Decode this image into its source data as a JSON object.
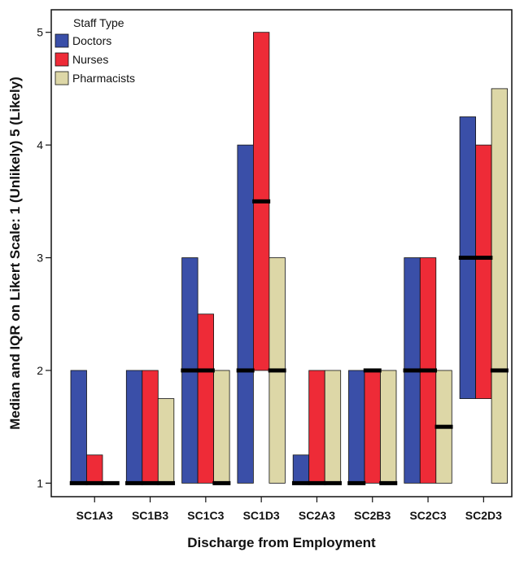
{
  "chart_data": {
    "type": "bar",
    "subtype": "floating-range-with-median",
    "xlabel": "Discharge from Employment",
    "ylabel": "Median and IQR on Likert Scale: 1 (Unlikely) 5 (Likely)",
    "ylim": [
      0.88,
      5.2
    ],
    "yticks": [
      1,
      2,
      3,
      4,
      5
    ],
    "grid": false,
    "legend": {
      "title": "Staff Type",
      "placement": "top-left",
      "entries": [
        "Doctors",
        "Nurses",
        "Pharmacists"
      ]
    },
    "categories": [
      "SC1A3",
      "SC1B3",
      "SC1C3",
      "SC1D3",
      "SC2A3",
      "SC2B3",
      "SC2C3",
      "SC2D3"
    ],
    "series": [
      {
        "name": "Doctors",
        "color": "#3a4fa8",
        "lower": [
          1,
          1,
          1,
          1,
          1,
          1,
          1,
          1.75
        ],
        "upper": [
          2,
          2,
          3,
          4,
          1.25,
          2,
          3,
          4.25
        ],
        "median": [
          1,
          1,
          2,
          2,
          1,
          1,
          2,
          3
        ]
      },
      {
        "name": "Nurses",
        "color": "#ee2b37",
        "lower": [
          1,
          1,
          1,
          2,
          1,
          1,
          1,
          1.75
        ],
        "upper": [
          1.25,
          2,
          2.5,
          5,
          2,
          2,
          3,
          4
        ],
        "median": [
          1,
          1,
          2,
          3.5,
          1,
          2,
          2,
          3
        ]
      },
      {
        "name": "Pharmacists",
        "color": "#ddd7a7",
        "lower": [
          1,
          1,
          1,
          1,
          1,
          1,
          1,
          1
        ],
        "upper": [
          1,
          1.75,
          2,
          3,
          2,
          2,
          2,
          4.5
        ],
        "median": [
          1,
          1,
          1,
          2,
          1,
          1,
          1.5,
          2
        ]
      }
    ]
  }
}
